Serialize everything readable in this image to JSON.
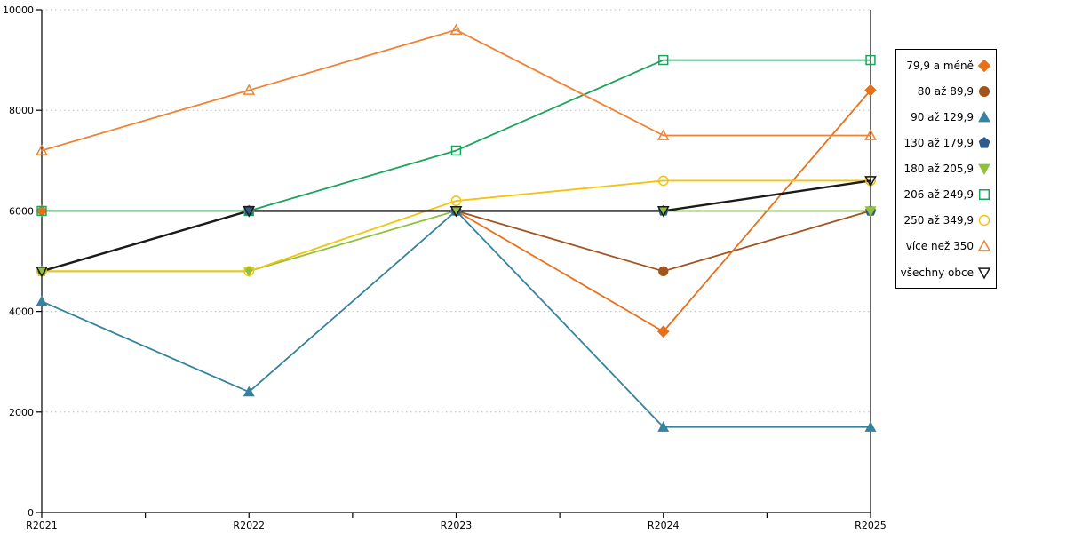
{
  "chart_data": {
    "type": "line",
    "title": "",
    "xlabel": "",
    "ylabel": "",
    "x_categories": [
      "R2021",
      "R2022",
      "R2023",
      "R2024",
      "R2025"
    ],
    "ylim": [
      0,
      10000
    ],
    "y_ticks": [
      0,
      2000,
      4000,
      6000,
      8000,
      10000
    ],
    "grid": "horizontal-dotted",
    "legend_position": "right-outside",
    "series": [
      {
        "name": "79,9 a méně",
        "color": "#E8701A",
        "marker": "diamond",
        "marker_fill": "solid",
        "line_width": 1.8,
        "values": [
          6000,
          6000,
          6000,
          3600,
          8400
        ]
      },
      {
        "name": "80 až 89,9",
        "color": "#A0541E",
        "marker": "circle",
        "marker_fill": "solid",
        "line_width": 1.8,
        "values": [
          4800,
          6000,
          6000,
          4800,
          6000
        ]
      },
      {
        "name": "90 až 129,9",
        "color": "#35839E",
        "marker": "triangle-up",
        "marker_fill": "solid",
        "line_width": 1.8,
        "values": [
          4200,
          2400,
          6000,
          1700,
          1700
        ]
      },
      {
        "name": "130 až 179,9",
        "color": "#2E5C8A",
        "marker": "pentagon",
        "marker_fill": "solid",
        "line_width": 1.8,
        "values": [
          4800,
          6000,
          6000,
          6000,
          6000
        ]
      },
      {
        "name": "180 až 205,9",
        "color": "#8FC13D",
        "marker": "triangle-down",
        "marker_fill": "solid",
        "line_width": 1.8,
        "values": [
          4800,
          4800,
          6000,
          6000,
          6000
        ]
      },
      {
        "name": "206 až 249,9",
        "color": "#1BA45C",
        "marker": "square",
        "marker_fill": "open",
        "line_width": 1.8,
        "values": [
          6000,
          6000,
          7200,
          9000,
          9000
        ]
      },
      {
        "name": "250 až 349,9",
        "color": "#F2C40E",
        "marker": "circle",
        "marker_fill": "open",
        "line_width": 1.8,
        "values": [
          4800,
          4800,
          6200,
          6600,
          6600
        ]
      },
      {
        "name": "více než 350",
        "color": "#F08234",
        "marker": "triangle-up",
        "marker_fill": "open",
        "line_width": 1.8,
        "values": [
          7200,
          8400,
          9600,
          7500,
          7500
        ]
      },
      {
        "name": "všechny obce",
        "color": "#1A1A1A",
        "marker": "triangle-down",
        "marker_fill": "open",
        "line_width": 2.4,
        "values": [
          4800,
          6000,
          6000,
          6000,
          6600
        ]
      }
    ],
    "colors": {
      "axis": "#000000",
      "gridline": "#BDBDBD",
      "background": "#FFFFFF"
    }
  }
}
